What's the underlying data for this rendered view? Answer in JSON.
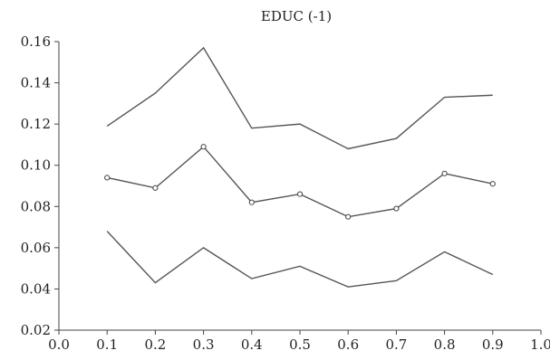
{
  "chart_data": {
    "type": "line",
    "title": "EDUC (-1)",
    "xlabel": "",
    "ylabel": "",
    "xlim": [
      0.0,
      1.0
    ],
    "ylim": [
      0.02,
      0.16
    ],
    "x_ticks": [
      "0.0",
      "0.1",
      "0.2",
      "0.3",
      "0.4",
      "0.5",
      "0.6",
      "0.7",
      "0.8",
      "0.9",
      "1.0"
    ],
    "y_ticks": [
      "0.02",
      "0.04",
      "0.06",
      "0.08",
      "0.10",
      "0.12",
      "0.14",
      "0.16"
    ],
    "grid": false,
    "x": [
      0.1,
      0.2,
      0.3,
      0.4,
      0.5,
      0.6,
      0.7,
      0.8,
      0.9
    ],
    "series": [
      {
        "values": [
          0.119,
          0.135,
          0.157,
          0.118,
          0.12,
          0.108,
          0.113,
          0.133,
          0.134
        ],
        "markers": false
      },
      {
        "values": [
          0.094,
          0.089,
          0.109,
          0.082,
          0.086,
          0.075,
          0.079,
          0.096,
          0.091
        ],
        "markers": true
      },
      {
        "values": [
          0.068,
          0.043,
          0.06,
          0.045,
          0.051,
          0.041,
          0.044,
          0.058,
          0.047
        ],
        "markers": false
      }
    ],
    "colors": {
      "line": "#555555",
      "axis": "#444444"
    }
  }
}
